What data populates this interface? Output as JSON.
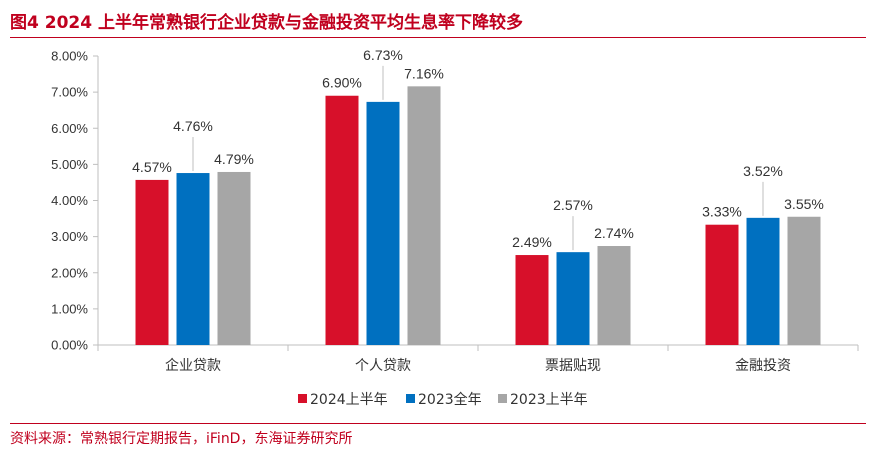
{
  "header": {
    "title": "图4  2024 上半年常熟银行企业贷款与金融投资平均生息率下降较多"
  },
  "footer": {
    "source": "资料来源：常熟银行定期报告，iFinD，东海证券研究所"
  },
  "chart_data": {
    "type": "bar",
    "categories": [
      "企业贷款",
      "个人贷款",
      "票据贴现",
      "金融投资"
    ],
    "series": [
      {
        "name": "2024上半年",
        "color": "#d7102a",
        "values": [
          4.57,
          6.9,
          2.49,
          3.33
        ]
      },
      {
        "name": "2023全年",
        "color": "#0070c0",
        "values": [
          4.76,
          6.73,
          2.57,
          3.52
        ]
      },
      {
        "name": "2023上半年",
        "color": "#a6a6a6",
        "values": [
          4.79,
          7.16,
          2.74,
          3.55
        ]
      }
    ],
    "ylim": [
      0,
      8
    ],
    "yticks": [
      0,
      1,
      2,
      3,
      4,
      5,
      6,
      7,
      8
    ],
    "ytick_labels": [
      "0.00%",
      "1.00%",
      "2.00%",
      "3.00%",
      "4.00%",
      "5.00%",
      "6.00%",
      "7.00%",
      "8.00%"
    ],
    "data_labels": [
      [
        "4.57%",
        "6.90%",
        "2.49%",
        "3.33%"
      ],
      [
        "4.76%",
        "6.73%",
        "2.57%",
        "3.52%"
      ],
      [
        "4.79%",
        "7.16%",
        "2.74%",
        "3.55%"
      ]
    ],
    "legend_position": "bottom",
    "grid": false
  }
}
